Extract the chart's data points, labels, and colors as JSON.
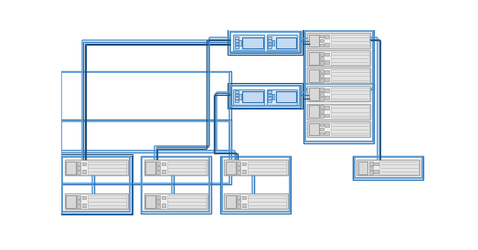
{
  "bg": "#ffffff",
  "c1": "#5b9bd5",
  "c2": "#2e75b6",
  "c3": "#1f4e79",
  "ctrl_fill": "#dce6f1",
  "ctrl_body": "#c5d9f1",
  "ctrl_port": "#b8cce4",
  "shelf_fill": "#f0f0f0",
  "shelf_inner": "#d8d8d8",
  "shelf_port": "#c8c8c8",
  "shelf_drive": "#e4e4e4",
  "fig_w": 5.23,
  "fig_h": 2.74,
  "dpi": 100
}
